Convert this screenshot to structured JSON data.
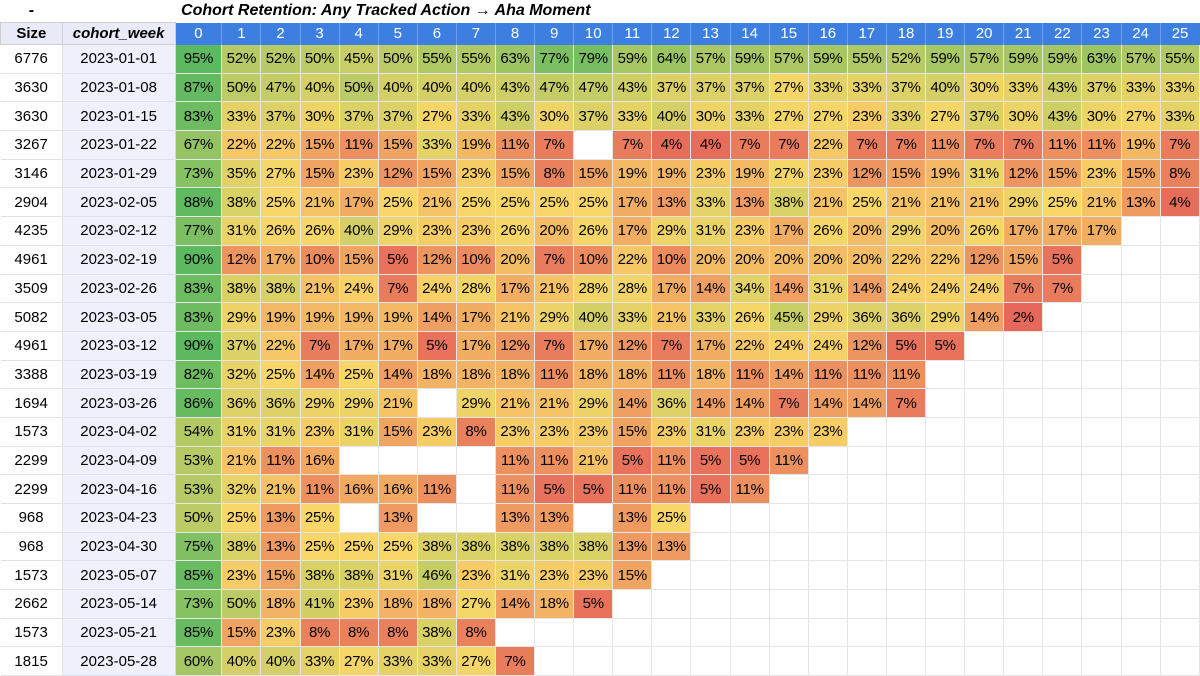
{
  "title": {
    "corner": "-",
    "text": "Cohort Retention: Any Tracked Action → Aha Moment"
  },
  "headers": {
    "size": "Size",
    "week": "cohort_week",
    "periods": [
      "0",
      "1",
      "2",
      "3",
      "4",
      "5",
      "6",
      "7",
      "8",
      "9",
      "10",
      "11",
      "12",
      "13",
      "14",
      "15",
      "16",
      "17",
      "18",
      "19",
      "20",
      "21",
      "22",
      "23",
      "24",
      "25"
    ]
  },
  "colors": {
    "header_bg": "#3d7fe0",
    "green": "#5cb85c",
    "yellow": "#f6d363",
    "red": "#e06a5a",
    "week_bg": "#eef0fb"
  },
  "rows": [
    {
      "size": "6776",
      "week": "2023-01-01",
      "vals": [
        95,
        52,
        52,
        50,
        45,
        50,
        55,
        55,
        63,
        77,
        79,
        59,
        64,
        57,
        59,
        57,
        59,
        55,
        52,
        59,
        57,
        59,
        59,
        63,
        57,
        55
      ]
    },
    {
      "size": "3630",
      "week": "2023-01-08",
      "vals": [
        87,
        50,
        47,
        40,
        50,
        40,
        40,
        40,
        43,
        47,
        47,
        43,
        37,
        37,
        37,
        27,
        33,
        33,
        37,
        40,
        30,
        33,
        43,
        37,
        33,
        33
      ]
    },
    {
      "size": "3630",
      "week": "2023-01-15",
      "vals": [
        83,
        33,
        37,
        30,
        37,
        37,
        27,
        33,
        43,
        30,
        37,
        33,
        40,
        30,
        33,
        27,
        27,
        23,
        33,
        27,
        37,
        30,
        43,
        30,
        27,
        33
      ]
    },
    {
      "size": "3267",
      "week": "2023-01-22",
      "vals": [
        67,
        22,
        22,
        15,
        11,
        15,
        33,
        19,
        11,
        7,
        null,
        7,
        4,
        4,
        7,
        7,
        22,
        7,
        7,
        11,
        7,
        7,
        11,
        11,
        19,
        7
      ]
    },
    {
      "size": "3146",
      "week": "2023-01-29",
      "vals": [
        73,
        35,
        27,
        15,
        23,
        12,
        15,
        23,
        15,
        8,
        15,
        19,
        19,
        23,
        19,
        27,
        23,
        12,
        15,
        19,
        31,
        12,
        15,
        23,
        15,
        8
      ]
    },
    {
      "size": "2904",
      "week": "2023-02-05",
      "vals": [
        88,
        38,
        25,
        21,
        17,
        25,
        21,
        25,
        25,
        25,
        25,
        17,
        13,
        33,
        13,
        38,
        21,
        25,
        21,
        21,
        21,
        29,
        25,
        21,
        13,
        4
      ]
    },
    {
      "size": "4235",
      "week": "2023-02-12",
      "vals": [
        77,
        31,
        26,
        26,
        40,
        29,
        23,
        23,
        26,
        20,
        26,
        17,
        29,
        31,
        23,
        17,
        26,
        20,
        29,
        20,
        26,
        17,
        17,
        17,
        null,
        null
      ]
    },
    {
      "size": "4961",
      "week": "2023-02-19",
      "vals": [
        90,
        12,
        17,
        10,
        15,
        5,
        12,
        10,
        20,
        7,
        10,
        22,
        10,
        20,
        20,
        20,
        20,
        20,
        22,
        22,
        12,
        15,
        5,
        null,
        null,
        null
      ]
    },
    {
      "size": "3509",
      "week": "2023-02-26",
      "vals": [
        83,
        38,
        38,
        21,
        24,
        7,
        24,
        28,
        17,
        21,
        28,
        28,
        17,
        14,
        34,
        14,
        31,
        14,
        24,
        24,
        24,
        7,
        7,
        null,
        null,
        null
      ]
    },
    {
      "size": "5082",
      "week": "2023-03-05",
      "vals": [
        83,
        29,
        19,
        19,
        19,
        19,
        14,
        17,
        21,
        29,
        40,
        33,
        21,
        33,
        26,
        45,
        29,
        36,
        36,
        29,
        14,
        2,
        null,
        null,
        null,
        null
      ]
    },
    {
      "size": "4961",
      "week": "2023-03-12",
      "vals": [
        90,
        37,
        22,
        7,
        17,
        17,
        5,
        17,
        12,
        7,
        17,
        12,
        7,
        17,
        22,
        24,
        24,
        12,
        5,
        5,
        null,
        null,
        null,
        null,
        null,
        null
      ]
    },
    {
      "size": "3388",
      "week": "2023-03-19",
      "vals": [
        82,
        32,
        25,
        14,
        25,
        14,
        18,
        18,
        18,
        11,
        18,
        18,
        11,
        18,
        11,
        14,
        11,
        11,
        11,
        null,
        null,
        null,
        null,
        null,
        null,
        null
      ]
    },
    {
      "size": "1694",
      "week": "2023-03-26",
      "vals": [
        86,
        36,
        36,
        29,
        29,
        21,
        null,
        29,
        21,
        21,
        29,
        14,
        36,
        14,
        14,
        7,
        14,
        14,
        7,
        null,
        null,
        null,
        null,
        null,
        null,
        null
      ]
    },
    {
      "size": "1573",
      "week": "2023-04-02",
      "vals": [
        54,
        31,
        31,
        23,
        31,
        15,
        23,
        8,
        23,
        23,
        23,
        15,
        23,
        31,
        23,
        23,
        23,
        null,
        null,
        null,
        null,
        null,
        null,
        null,
        null,
        null
      ]
    },
    {
      "size": "2299",
      "week": "2023-04-09",
      "vals": [
        53,
        21,
        11,
        16,
        null,
        null,
        null,
        null,
        11,
        11,
        21,
        5,
        11,
        5,
        5,
        11,
        null,
        null,
        null,
        null,
        null,
        null,
        null,
        null,
        null,
        null
      ]
    },
    {
      "size": "2299",
      "week": "2023-04-16",
      "vals": [
        53,
        32,
        21,
        11,
        16,
        16,
        11,
        null,
        11,
        5,
        5,
        11,
        11,
        5,
        11,
        null,
        null,
        null,
        null,
        null,
        null,
        null,
        null,
        null,
        null,
        null
      ]
    },
    {
      "size": "968",
      "week": "2023-04-23",
      "vals": [
        50,
        25,
        13,
        25,
        null,
        13,
        null,
        null,
        13,
        13,
        null,
        13,
        25,
        null,
        null,
        null,
        null,
        null,
        null,
        null,
        null,
        null,
        null,
        null,
        null,
        null
      ]
    },
    {
      "size": "968",
      "week": "2023-04-30",
      "vals": [
        75,
        38,
        13,
        25,
        25,
        25,
        38,
        38,
        38,
        38,
        38,
        13,
        13,
        null,
        null,
        null,
        null,
        null,
        null,
        null,
        null,
        null,
        null,
        null,
        null,
        null
      ]
    },
    {
      "size": "1573",
      "week": "2023-05-07",
      "vals": [
        85,
        23,
        15,
        38,
        38,
        31,
        46,
        23,
        31,
        23,
        23,
        15,
        null,
        null,
        null,
        null,
        null,
        null,
        null,
        null,
        null,
        null,
        null,
        null,
        null,
        null
      ]
    },
    {
      "size": "2662",
      "week": "2023-05-14",
      "vals": [
        73,
        50,
        18,
        41,
        23,
        18,
        18,
        27,
        14,
        18,
        5,
        null,
        null,
        null,
        null,
        null,
        null,
        null,
        null,
        null,
        null,
        null,
        null,
        null,
        null,
        null
      ]
    },
    {
      "size": "1573",
      "week": "2023-05-21",
      "vals": [
        85,
        15,
        23,
        8,
        8,
        8,
        38,
        8,
        null,
        null,
        null,
        null,
        null,
        null,
        null,
        null,
        null,
        null,
        null,
        null,
        null,
        null,
        null,
        null,
        null,
        null
      ]
    },
    {
      "size": "1815",
      "week": "2023-05-28",
      "vals": [
        60,
        40,
        40,
        33,
        27,
        33,
        33,
        27,
        7,
        null,
        null,
        null,
        null,
        null,
        null,
        null,
        null,
        null,
        null,
        null,
        null,
        null,
        null,
        null,
        null,
        null
      ]
    }
  ]
}
